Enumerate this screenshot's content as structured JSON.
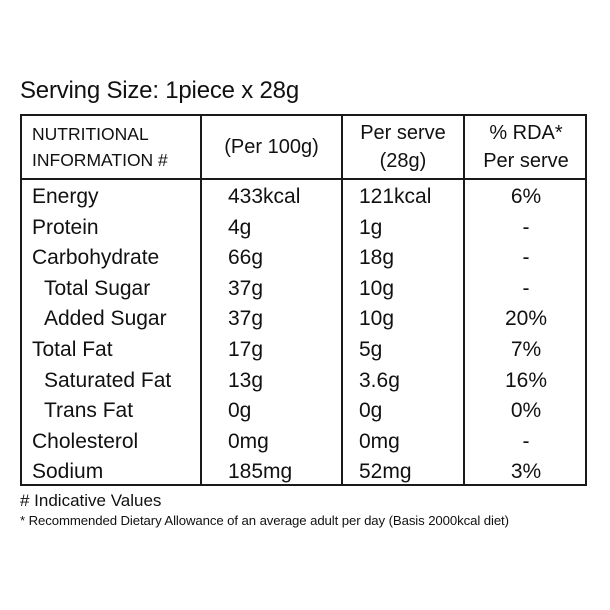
{
  "serving_size": "Serving Size: 1piece x 28g",
  "header": {
    "nutritional_line1": "NUTRITIONAL",
    "nutritional_line2": "INFORMATION #",
    "per100": "(Per 100g)",
    "serve_line1": "Per serve",
    "serve_line2": "(28g)",
    "rda_line1": "% RDA*",
    "rda_line2": "Per serve"
  },
  "rows": [
    {
      "name": "Energy",
      "per100": "433kcal",
      "per_serve": "121kcal",
      "rda": "6%"
    },
    {
      "name": "Protein",
      "per100": "4g",
      "per_serve": "1g",
      "rda": "-"
    },
    {
      "name": "Carbohydrate",
      "per100": "66g",
      "per_serve": "18g",
      "rda": "-"
    },
    {
      "name": "Total Sugar",
      "per100": "37g",
      "per_serve": "10g",
      "rda": "-"
    },
    {
      "name": "Added Sugar",
      "per100": "37g",
      "per_serve": "10g",
      "rda": "20%"
    },
    {
      "name": "Total Fat",
      "per100": "17g",
      "per_serve": "5g",
      "rda": "7%"
    },
    {
      "name": "Saturated Fat",
      "per100": "13g",
      "per_serve": "3.6g",
      "rda": "16%"
    },
    {
      "name": "Trans Fat",
      "per100": "0g",
      "per_serve": "0g",
      "rda": "0%"
    },
    {
      "name": "Cholesterol",
      "per100": "0mg",
      "per_serve": "0mg",
      "rda": "-"
    },
    {
      "name": "Sodium",
      "per100": "185mg",
      "per_serve": "52mg",
      "rda": "3%"
    }
  ],
  "footnotes": {
    "indicative": "# Indicative Values",
    "rda_note": "* Recommended Dietary Allowance of an average adult per day (Basis 2000kcal diet)"
  }
}
